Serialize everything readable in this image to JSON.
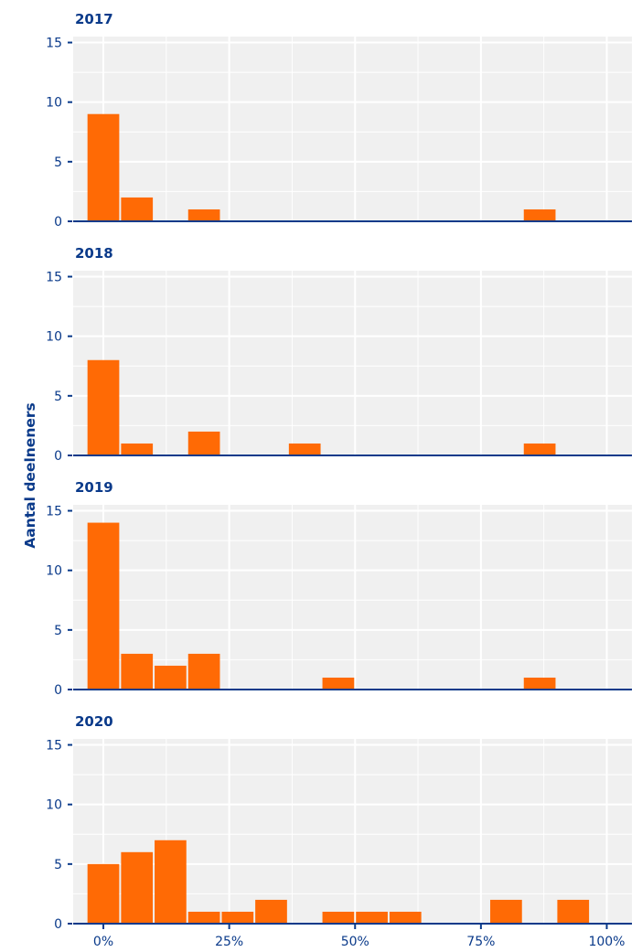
{
  "colors": {
    "bar": "#ff6a05",
    "panel_bg": "#f0f0f0",
    "grid": "#ffffff",
    "axis": "#0a3a8a",
    "text": "#0a3a8a"
  },
  "chart_data": {
    "type": "bar",
    "chart_kind": "faceted-histogram",
    "ylabel": "Aantal deelneners",
    "xlabel": "",
    "x_ticks": [
      "0%",
      "25%",
      "50%",
      "75%",
      "100%"
    ],
    "y_ticks": [
      "0",
      "5",
      "10",
      "15"
    ],
    "xlim": [
      -0.06,
      1.05
    ],
    "ylim": [
      0,
      15.5
    ],
    "bin_width": 0.0667,
    "bin_centers": [
      0,
      0.0667,
      0.1333,
      0.2,
      0.2667,
      0.3333,
      0.4,
      0.4667,
      0.5333,
      0.6,
      0.6667,
      0.7333,
      0.8,
      0.8667,
      0.9333,
      1.0
    ],
    "grid": true,
    "panels": [
      {
        "title": "2017",
        "values": [
          9,
          2,
          0,
          1,
          0,
          0,
          0,
          0,
          0,
          0,
          0,
          0,
          0,
          1,
          0,
          0
        ]
      },
      {
        "title": "2018",
        "values": [
          8,
          1,
          0,
          2,
          0,
          0,
          1,
          0,
          0,
          0,
          0,
          0,
          0,
          1,
          0,
          0
        ]
      },
      {
        "title": "2019",
        "values": [
          14,
          3,
          2,
          3,
          0,
          0,
          0,
          1,
          0,
          0,
          0,
          0,
          0,
          1,
          0,
          0
        ]
      },
      {
        "title": "2020",
        "values": [
          5,
          6,
          7,
          1,
          1,
          2,
          0,
          1,
          1,
          1,
          0,
          0,
          2,
          0,
          2,
          0
        ]
      }
    ]
  }
}
